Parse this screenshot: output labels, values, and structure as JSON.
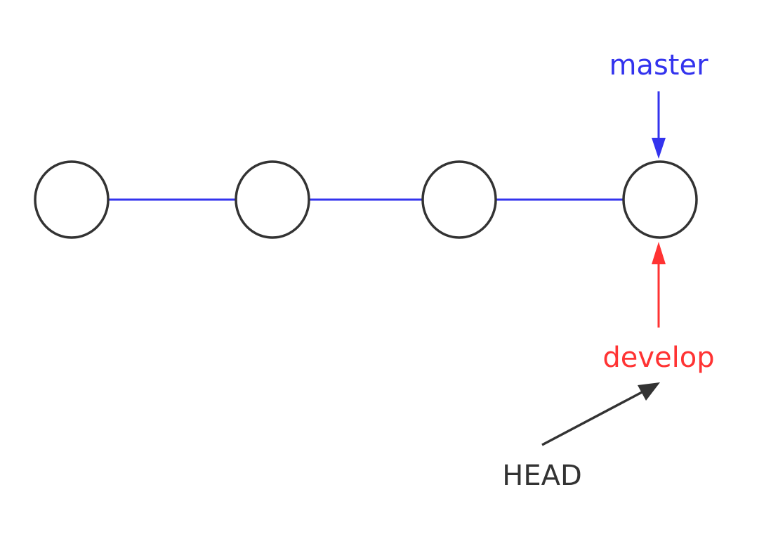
{
  "colors": {
    "branch_line": "#3333ee",
    "node_stroke": "#333333",
    "master": "#3333ee",
    "develop": "#ff3333",
    "head": "#333333"
  },
  "commits": [
    {
      "id": "c1"
    },
    {
      "id": "c2"
    },
    {
      "id": "c3"
    },
    {
      "id": "c4"
    }
  ],
  "labels": {
    "master": "master",
    "develop": "develop",
    "head": "HEAD"
  }
}
